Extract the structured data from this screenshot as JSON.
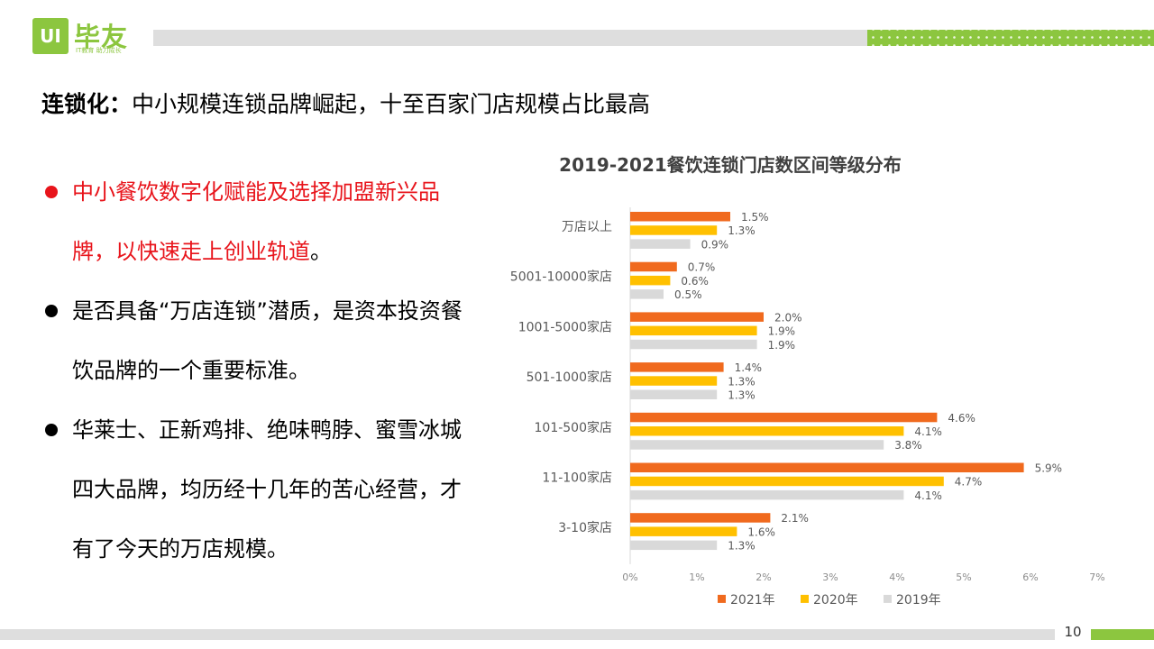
{
  "logo": {
    "mark": "UI",
    "name": "毕友",
    "slogan": "IT教育 助力成长"
  },
  "title": {
    "prefix": "连锁化：",
    "text": "中小规模连锁品牌崛起，十至百家门店规模占比最高"
  },
  "bullets": [
    {
      "text": "中小餐饮数字化赋能及选择加盟新兴品牌，以快速走上创业轨道",
      "tail": "。"
    },
    {
      "text": "是否具备“万店连锁”潜质，是资本投资餐饮品牌的一个重要标准。"
    },
    {
      "text": "华莱士、正新鸡排、绝味鸭脖、蜜雪冰城四大品牌，均历经十几年的苦心经营，才有了今天的万店规模。"
    }
  ],
  "page_number": "10",
  "colors": {
    "accent_green": "#8cc63f",
    "red_text": "#e8141b"
  },
  "chart_data": {
    "type": "bar",
    "orientation": "horizontal",
    "title": "2019-2021餐饮连锁门店数区间等级分布",
    "categories": [
      "万店以上",
      "5001-10000家店",
      "1001-5000家店",
      "501-1000家店",
      "101-500家店",
      "11-100家店",
      "3-10家店"
    ],
    "series": [
      {
        "name": "2021年",
        "color": "#f06a1e",
        "values": [
          1.5,
          0.7,
          2.0,
          1.4,
          4.6,
          5.9,
          2.1
        ]
      },
      {
        "name": "2020年",
        "color": "#ffc000",
        "values": [
          1.3,
          0.6,
          1.9,
          1.3,
          4.1,
          4.7,
          1.6
        ]
      },
      {
        "name": "2019年",
        "color": "#d9d9d9",
        "values": [
          0.9,
          0.5,
          1.9,
          1.3,
          3.8,
          4.1,
          1.3
        ]
      }
    ],
    "value_suffix": "%",
    "xlim": [
      0,
      7
    ],
    "xticks": [
      "0%",
      "1%",
      "2%",
      "3%",
      "4%",
      "5%",
      "6%",
      "7%"
    ],
    "legend_position": "bottom"
  }
}
